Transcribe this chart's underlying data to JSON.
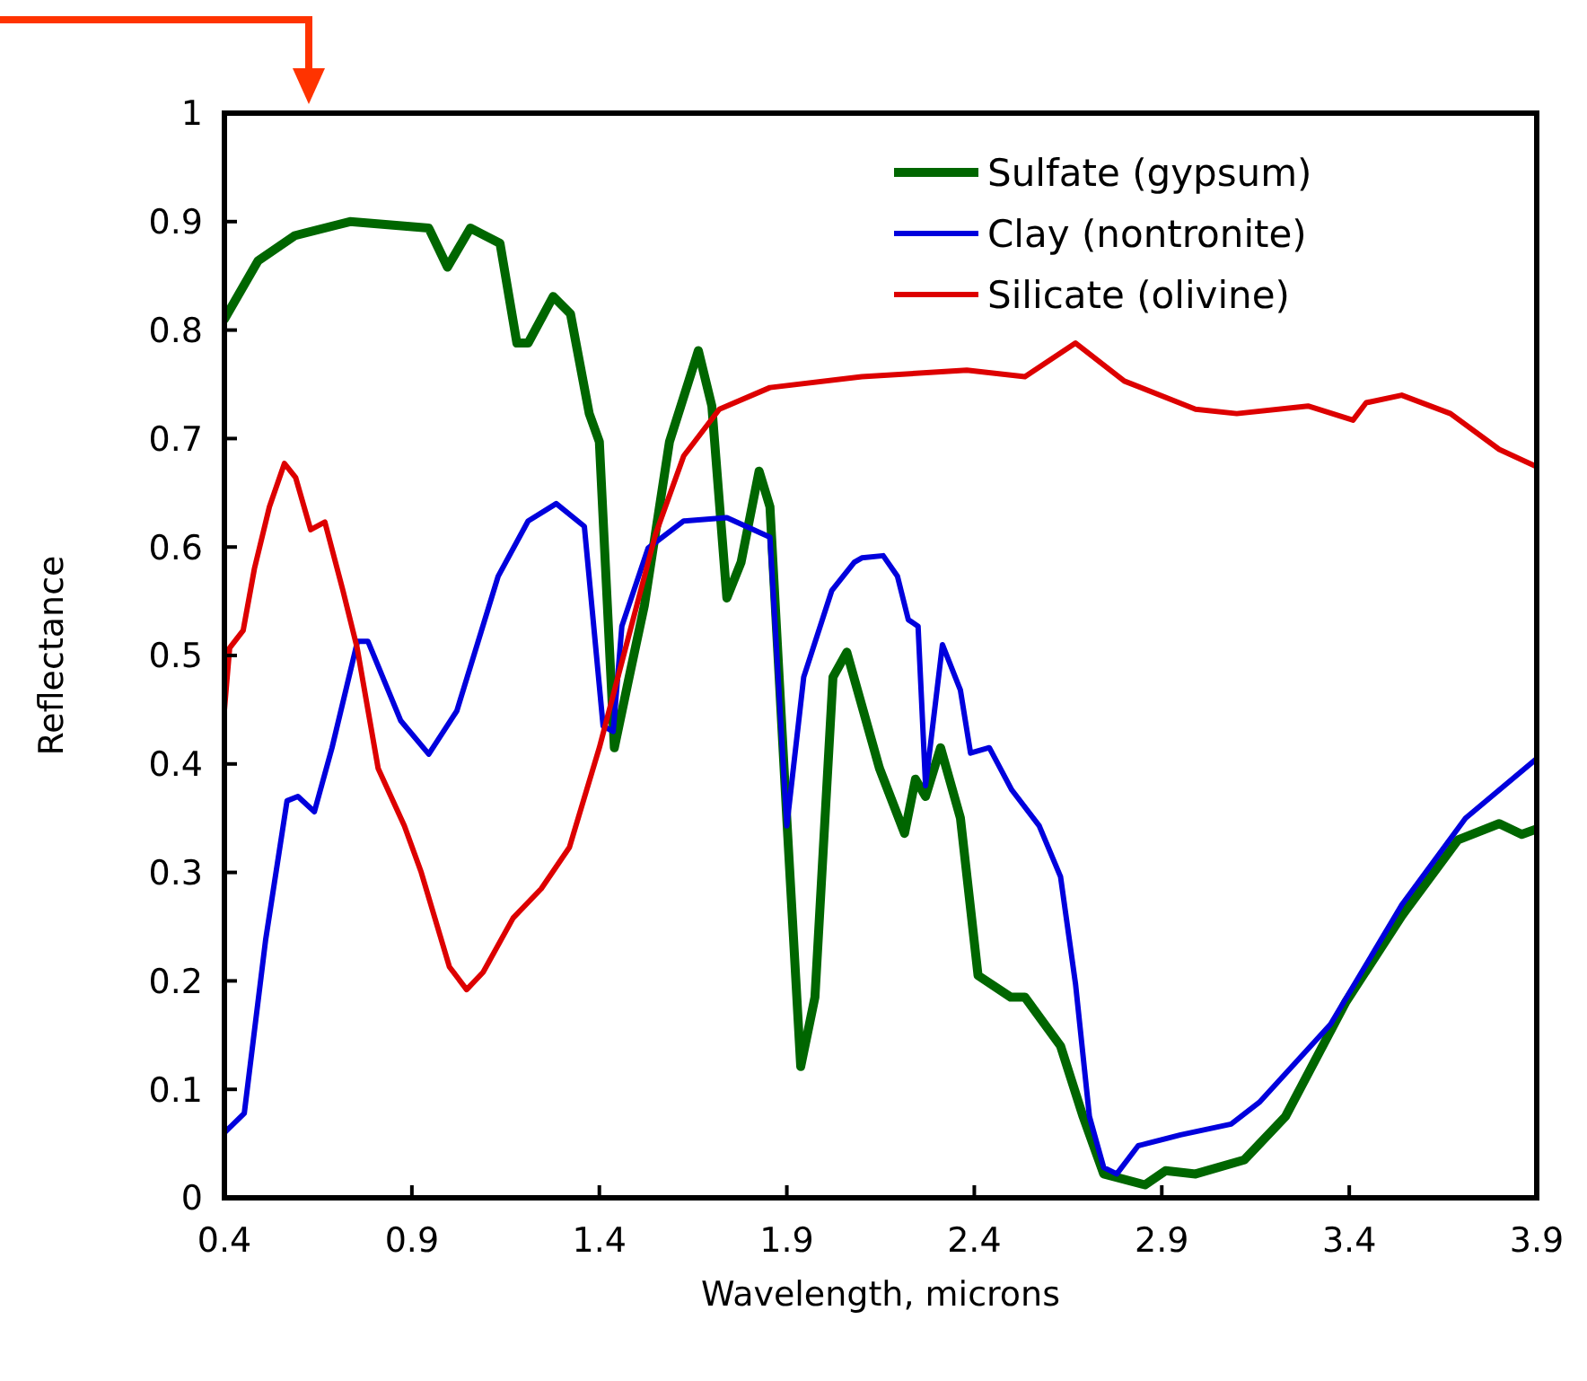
{
  "chart_data": {
    "type": "line",
    "xlabel": "Wavelength, microns",
    "ylabel": "Reflectance",
    "xlim": [
      0.4,
      3.9
    ],
    "ylim": [
      0,
      1
    ],
    "xticks": [
      0.4,
      0.9,
      1.4,
      1.9,
      2.4,
      2.9,
      3.4,
      3.9
    ],
    "yticks": [
      0,
      0.1,
      0.2,
      0.3,
      0.4,
      0.5,
      0.6,
      0.7,
      0.8,
      0.9,
      1
    ],
    "grid": false,
    "legend": "top right",
    "marker": "none",
    "line_style": "solid",
    "series": [
      {
        "name": "Sulfate (gypsum)",
        "color": "#006600",
        "x": [
          0.4,
          0.49,
          0.587,
          0.735,
          0.945,
          0.995,
          1.056,
          1.135,
          1.18,
          1.21,
          1.277,
          1.323,
          1.373,
          1.4,
          1.44,
          1.483,
          1.52,
          1.587,
          1.664,
          1.7,
          1.74,
          1.778,
          1.826,
          1.855,
          1.9,
          1.937,
          1.975,
          2.023,
          2.06,
          2.147,
          2.214,
          2.243,
          2.27,
          2.31,
          2.363,
          2.41,
          2.497,
          2.535,
          2.63,
          2.69,
          2.745,
          2.855,
          2.91,
          2.99,
          3.12,
          3.23,
          3.39,
          3.54,
          3.69,
          3.8,
          3.86,
          3.9
        ],
        "values": [
          0.81,
          0.864,
          0.887,
          0.9,
          0.894,
          0.858,
          0.894,
          0.88,
          0.788,
          0.788,
          0.831,
          0.815,
          0.723,
          0.697,
          0.415,
          0.486,
          0.546,
          0.697,
          0.781,
          0.73,
          0.553,
          0.586,
          0.67,
          0.637,
          0.349,
          0.121,
          0.185,
          0.48,
          0.503,
          0.396,
          0.336,
          0.386,
          0.37,
          0.415,
          0.35,
          0.205,
          0.185,
          0.185,
          0.14,
          0.075,
          0.022,
          0.012,
          0.025,
          0.022,
          0.035,
          0.075,
          0.18,
          0.26,
          0.33,
          0.345,
          0.335,
          0.34
        ]
      },
      {
        "name": "Clay (nontronite)",
        "color": "#0000dd",
        "x": [
          0.4,
          0.453,
          0.51,
          0.567,
          0.596,
          0.64,
          0.687,
          0.755,
          0.783,
          0.87,
          0.945,
          1.02,
          1.13,
          1.21,
          1.285,
          1.36,
          1.41,
          1.437,
          1.46,
          1.53,
          1.625,
          1.74,
          1.855,
          1.9,
          1.945,
          2.02,
          2.08,
          2.1,
          2.157,
          2.195,
          2.224,
          2.25,
          2.27,
          2.315,
          2.363,
          2.39,
          2.44,
          2.5,
          2.573,
          2.63,
          2.67,
          2.707,
          2.745,
          2.78,
          2.837,
          2.95,
          3.085,
          3.16,
          3.35,
          3.54,
          3.71,
          3.9
        ],
        "values": [
          0.06,
          0.078,
          0.238,
          0.366,
          0.37,
          0.356,
          0.415,
          0.513,
          0.513,
          0.44,
          0.409,
          0.449,
          0.573,
          0.624,
          0.64,
          0.619,
          0.435,
          0.43,
          0.527,
          0.599,
          0.624,
          0.627,
          0.609,
          0.343,
          0.48,
          0.56,
          0.586,
          0.59,
          0.592,
          0.573,
          0.533,
          0.527,
          0.38,
          0.51,
          0.468,
          0.41,
          0.415,
          0.376,
          0.343,
          0.296,
          0.197,
          0.075,
          0.028,
          0.022,
          0.048,
          0.058,
          0.068,
          0.088,
          0.16,
          0.27,
          0.35,
          0.405
        ]
      },
      {
        "name": "Silicate (olivine)",
        "color": "#dd0000",
        "x": [
          0.4,
          0.414,
          0.45,
          0.48,
          0.52,
          0.56,
          0.59,
          0.63,
          0.668,
          0.716,
          0.754,
          0.81,
          0.88,
          0.925,
          1.0,
          1.046,
          1.09,
          1.17,
          1.245,
          1.32,
          1.4,
          1.47,
          1.55,
          1.625,
          1.72,
          1.855,
          2.1,
          2.38,
          2.535,
          2.67,
          2.8,
          2.99,
          3.1,
          3.29,
          3.41,
          3.445,
          3.54,
          3.67,
          3.8,
          3.9
        ],
        "values": [
          0.45,
          0.507,
          0.523,
          0.58,
          0.637,
          0.677,
          0.664,
          0.616,
          0.623,
          0.56,
          0.507,
          0.396,
          0.343,
          0.3,
          0.213,
          0.192,
          0.208,
          0.258,
          0.285,
          0.323,
          0.415,
          0.507,
          0.612,
          0.684,
          0.727,
          0.747,
          0.757,
          0.763,
          0.757,
          0.788,
          0.753,
          0.727,
          0.723,
          0.73,
          0.717,
          0.733,
          0.74,
          0.723,
          0.69,
          0.674
        ]
      }
    ]
  }
}
